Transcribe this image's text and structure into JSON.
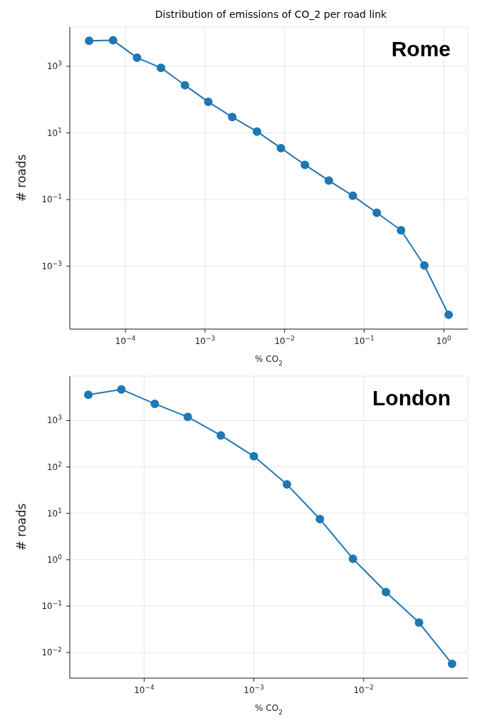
{
  "chart_data": [
    {
      "type": "line",
      "title": "Distribution of emissions of CO_2 per road link",
      "xlabel": "% CO$_{2}$",
      "ylabel": "# roads",
      "annotations": [
        "Rome"
      ],
      "log": "xy",
      "grid": true,
      "marker": "circle",
      "line_style": "solid",
      "x": [
        3.5e-05,
        7e-05,
        0.00014,
        0.00028,
        0.00056,
        0.0011,
        0.0022,
        0.0045,
        0.009,
        0.018,
        0.036,
        0.072,
        0.144,
        0.29,
        0.57,
        1.15
      ],
      "series": [
        {
          "color": "#1f77b4",
          "values": [
            5800,
            6000,
            1800,
            900,
            270,
            85,
            30,
            11,
            3.5,
            1.1,
            0.37,
            0.13,
            0.04,
            0.012,
            0.00105,
            3.5e-05
          ]
        }
      ],
      "xlim": [
        2e-05,
        2
      ],
      "ylim": [
        1.3e-05,
        15000
      ],
      "xticks": [
        {
          "value": 0.0001,
          "label": "10$^{−4}$"
        },
        {
          "value": 0.001,
          "label": "10$^{−3}$"
        },
        {
          "value": 0.01,
          "label": "10$^{−2}$"
        },
        {
          "value": 0.1,
          "label": "10$^{−1}$"
        },
        {
          "value": 1,
          "label": "10$^{0}$"
        }
      ],
      "yticks": [
        {
          "value": 0.001,
          "label": "10$^{−3}$"
        },
        {
          "value": 0.1,
          "label": "10$^{−1}$"
        },
        {
          "value": 10,
          "label": "10$^{1}$"
        },
        {
          "value": 1000,
          "label": "10$^{3}$"
        }
      ]
    },
    {
      "type": "line",
      "xlabel": "% CO$_{2}$",
      "ylabel": "# roads",
      "annotations": [
        "London"
      ],
      "log": "xy",
      "grid": true,
      "marker": "circle",
      "line_style": "solid",
      "x": [
        3.1e-05,
        6.2e-05,
        0.000125,
        0.00025,
        0.0005,
        0.001,
        0.002,
        0.004,
        0.008,
        0.016,
        0.032,
        0.064
      ],
      "series": [
        {
          "color": "#1f77b4",
          "values": [
            3600,
            4700,
            2300,
            1200,
            480,
            170,
            42,
            7.5,
            1.05,
            0.2,
            0.044,
            0.0057
          ]
        }
      ],
      "xlim": [
        2.1e-05,
        0.089
      ],
      "ylim": [
        0.0028,
        9100
      ],
      "xticks": [
        {
          "value": 0.0001,
          "label": "10$^{−4}$"
        },
        {
          "value": 0.001,
          "label": "10$^{−3}$"
        },
        {
          "value": 0.01,
          "label": "10$^{−2}$"
        }
      ],
      "yticks": [
        {
          "value": 0.01,
          "label": "10$^{−2}$"
        },
        {
          "value": 0.1,
          "label": "10$^{−1}$"
        },
        {
          "value": 1,
          "label": "10$^{0}$"
        },
        {
          "value": 10,
          "label": "10$^{1}$"
        },
        {
          "value": 100,
          "label": "10$^{2}$"
        },
        {
          "value": 1000,
          "label": "10$^{3}$"
        }
      ]
    }
  ]
}
